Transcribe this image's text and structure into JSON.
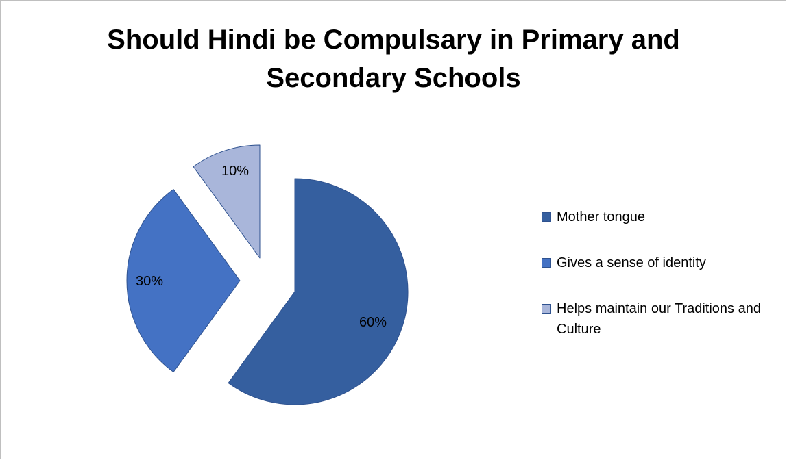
{
  "chart_data": {
    "type": "pie",
    "title_lines": [
      "Should Hindi be Compulsary in Primary and",
      "Secondary Schools"
    ],
    "slices": [
      {
        "label": "Mother tongue",
        "value": 60,
        "display": "60%",
        "color": "#355f9f"
      },
      {
        "label": "Gives a sense of identity",
        "value": 30,
        "display": "30%",
        "color": "#4472c4"
      },
      {
        "label": "Helps maintain our Traditions and Culture",
        "value": 10,
        "display": "10%",
        "color": "#a9b6da"
      }
    ],
    "legend_position": "right",
    "exploded": true
  }
}
